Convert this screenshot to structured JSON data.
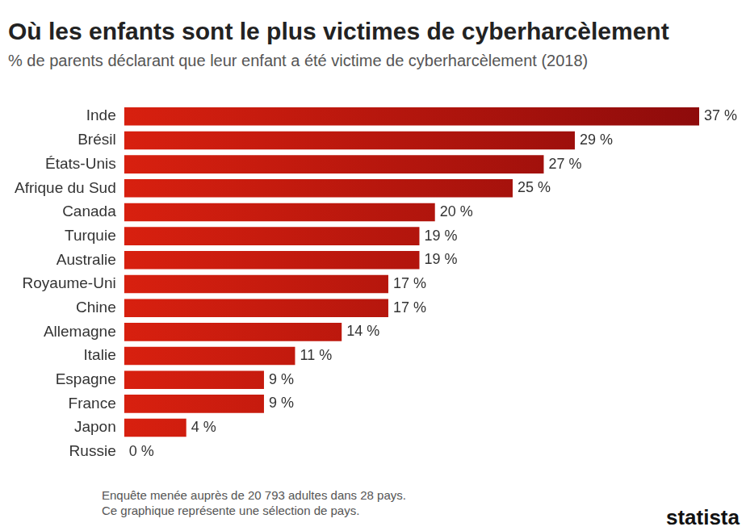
{
  "chart_data": {
    "type": "bar",
    "title": "Où les enfants sont le plus victimes de cyberharcèlement",
    "subtitle": "% de parents déclarant que leur enfant a été victime de cyberharcèlement (2018)",
    "categories": [
      "Inde",
      "Brésil",
      "États-Unis",
      "Afrique du Sud",
      "Canada",
      "Turquie",
      "Australie",
      "Royaume-Uni",
      "Chine",
      "Allemagne",
      "Italie",
      "Espagne",
      "France",
      "Japon",
      "Russie"
    ],
    "values": [
      37,
      29,
      27,
      25,
      20,
      19,
      19,
      17,
      17,
      14,
      11,
      9,
      9,
      4,
      0
    ],
    "value_labels": [
      "37 %",
      "29 %",
      "27 %",
      "25 %",
      "20 %",
      "19 %",
      "19 %",
      "17 %",
      "17 %",
      "14 %",
      "11 %",
      "9 %",
      "9 %",
      "4 %",
      "0 %"
    ],
    "color": "#d8200f",
    "orientation": "horizontal",
    "xlim": [
      0,
      37
    ],
    "grid": false,
    "data_labels": true,
    "tick_labels": "y",
    "notes": [
      "Enquête menée auprès de 20 793 adultes dans 28 pays.",
      "Ce graphique représente une sélection de pays."
    ],
    "logo": "statista"
  }
}
